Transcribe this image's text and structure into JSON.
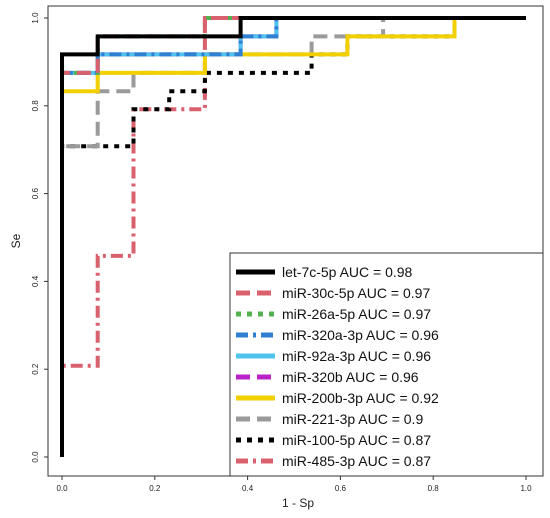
{
  "chart_data": {
    "type": "line",
    "title": "",
    "xlabel": "1 - Sp",
    "ylabel": "Se",
    "xlim": [
      0,
      1
    ],
    "ylim": [
      0,
      1
    ],
    "x_ticks": [
      "0.0",
      "0.2",
      "0.4",
      "0.6",
      "0.8",
      "1.0"
    ],
    "y_ticks": [
      "0.0",
      "0.2",
      "0.4",
      "0.6",
      "0.8",
      "1.0"
    ],
    "grid": false,
    "legend_position": "bottom-right",
    "series": [
      {
        "name": "let-7c-5p AUC =  0.98",
        "color": "#000000",
        "dash": "solid",
        "points": [
          [
            0,
            0
          ],
          [
            0,
            0.917
          ],
          [
            0.077,
            0.917
          ],
          [
            0.077,
            0.958
          ],
          [
            0.385,
            0.958
          ],
          [
            0.385,
            1
          ],
          [
            1,
            1
          ]
        ]
      },
      {
        "name": "miR-30c-5p AUC =  0.97",
        "color": "#d9606d",
        "dash": "long-dash",
        "points": [
          [
            0,
            0
          ],
          [
            0,
            0.875
          ],
          [
            0.077,
            0.875
          ],
          [
            0.077,
            0.958
          ],
          [
            0.308,
            0.958
          ],
          [
            0.308,
            1
          ],
          [
            1,
            1
          ]
        ]
      },
      {
        "name": "miR-26a-5p AUC =  0.97",
        "color": "#55b050",
        "dash": "dotted",
        "points": [
          [
            0,
            0
          ],
          [
            0,
            0.875
          ],
          [
            0.077,
            0.875
          ],
          [
            0.077,
            0.958
          ],
          [
            0.308,
            0.958
          ],
          [
            0.308,
            1
          ],
          [
            1,
            1
          ]
        ]
      },
      {
        "name": "miR-320a-3p AUC =  0.96",
        "color": "#2f7fd2",
        "dash": "dot-dash",
        "points": [
          [
            0,
            0
          ],
          [
            0,
            0.875
          ],
          [
            0.077,
            0.875
          ],
          [
            0.077,
            0.917
          ],
          [
            0.385,
            0.917
          ],
          [
            0.385,
            0.958
          ],
          [
            0.462,
            0.958
          ],
          [
            0.462,
            1
          ],
          [
            1,
            1
          ]
        ]
      },
      {
        "name": "miR-92a-3p AUC =  0.96",
        "color": "#4dc3ee",
        "dash": "solid",
        "points": [
          [
            0,
            0
          ],
          [
            0,
            0.875
          ],
          [
            0.077,
            0.875
          ],
          [
            0.077,
            0.917
          ],
          [
            0.385,
            0.917
          ],
          [
            0.385,
            0.958
          ],
          [
            0.462,
            0.958
          ],
          [
            0.462,
            1
          ],
          [
            1,
            1
          ]
        ]
      },
      {
        "name": "miR-320b AUC =  0.96",
        "color": "#b822c8",
        "dash": "long-dash",
        "points": [
          [
            0,
            0
          ],
          [
            0,
            0.875
          ],
          [
            0.077,
            0.875
          ],
          [
            0.077,
            0.917
          ],
          [
            0.385,
            0.917
          ],
          [
            0.385,
            0.958
          ],
          [
            0.462,
            0.958
          ],
          [
            0.462,
            1
          ],
          [
            1,
            1
          ]
        ]
      },
      {
        "name": "miR-200b-3p AUC =  0.92",
        "color": "#f2d000",
        "dash": "solid",
        "points": [
          [
            0,
            0
          ],
          [
            0,
            0.833
          ],
          [
            0.077,
            0.833
          ],
          [
            0.077,
            0.875
          ],
          [
            0.308,
            0.875
          ],
          [
            0.308,
            0.917
          ],
          [
            0.615,
            0.917
          ],
          [
            0.615,
            0.958
          ],
          [
            0.846,
            0.958
          ],
          [
            0.846,
            1
          ],
          [
            1,
            1
          ]
        ]
      },
      {
        "name": "miR-221-3p AUC =  0.9",
        "color": "#9a9a9a",
        "dash": "long-dash",
        "points": [
          [
            0,
            0
          ],
          [
            0,
            0.708
          ],
          [
            0.077,
            0.708
          ],
          [
            0.077,
            0.833
          ],
          [
            0.154,
            0.833
          ],
          [
            0.154,
            0.875
          ],
          [
            0.308,
            0.875
          ],
          [
            0.308,
            0.917
          ],
          [
            0.538,
            0.917
          ],
          [
            0.538,
            0.958
          ],
          [
            0.692,
            0.958
          ],
          [
            0.692,
            1
          ],
          [
            1,
            1
          ]
        ]
      },
      {
        "name": "miR-100-5p AUC =  0.87",
        "color": "#000000",
        "dash": "dotted",
        "points": [
          [
            0,
            0
          ],
          [
            0,
            0.708
          ],
          [
            0.154,
            0.708
          ],
          [
            0.154,
            0.792
          ],
          [
            0.231,
            0.792
          ],
          [
            0.231,
            0.833
          ],
          [
            0.308,
            0.833
          ],
          [
            0.308,
            0.875
          ],
          [
            0.538,
            0.875
          ],
          [
            0.538,
            0.917
          ],
          [
            0.615,
            0.917
          ],
          [
            0.615,
            0.958
          ],
          [
            0.846,
            0.958
          ],
          [
            0.846,
            1
          ],
          [
            1,
            1
          ]
        ]
      },
      {
        "name": "miR-485-3p AUC =  0.87",
        "color": "#d9606d",
        "dash": "dot-dash",
        "points": [
          [
            0,
            0
          ],
          [
            0,
            0.208
          ],
          [
            0.077,
            0.208
          ],
          [
            0.077,
            0.458
          ],
          [
            0.154,
            0.458
          ],
          [
            0.154,
            0.792
          ],
          [
            0.308,
            0.792
          ],
          [
            0.308,
            1
          ],
          [
            1,
            1
          ]
        ]
      }
    ]
  }
}
